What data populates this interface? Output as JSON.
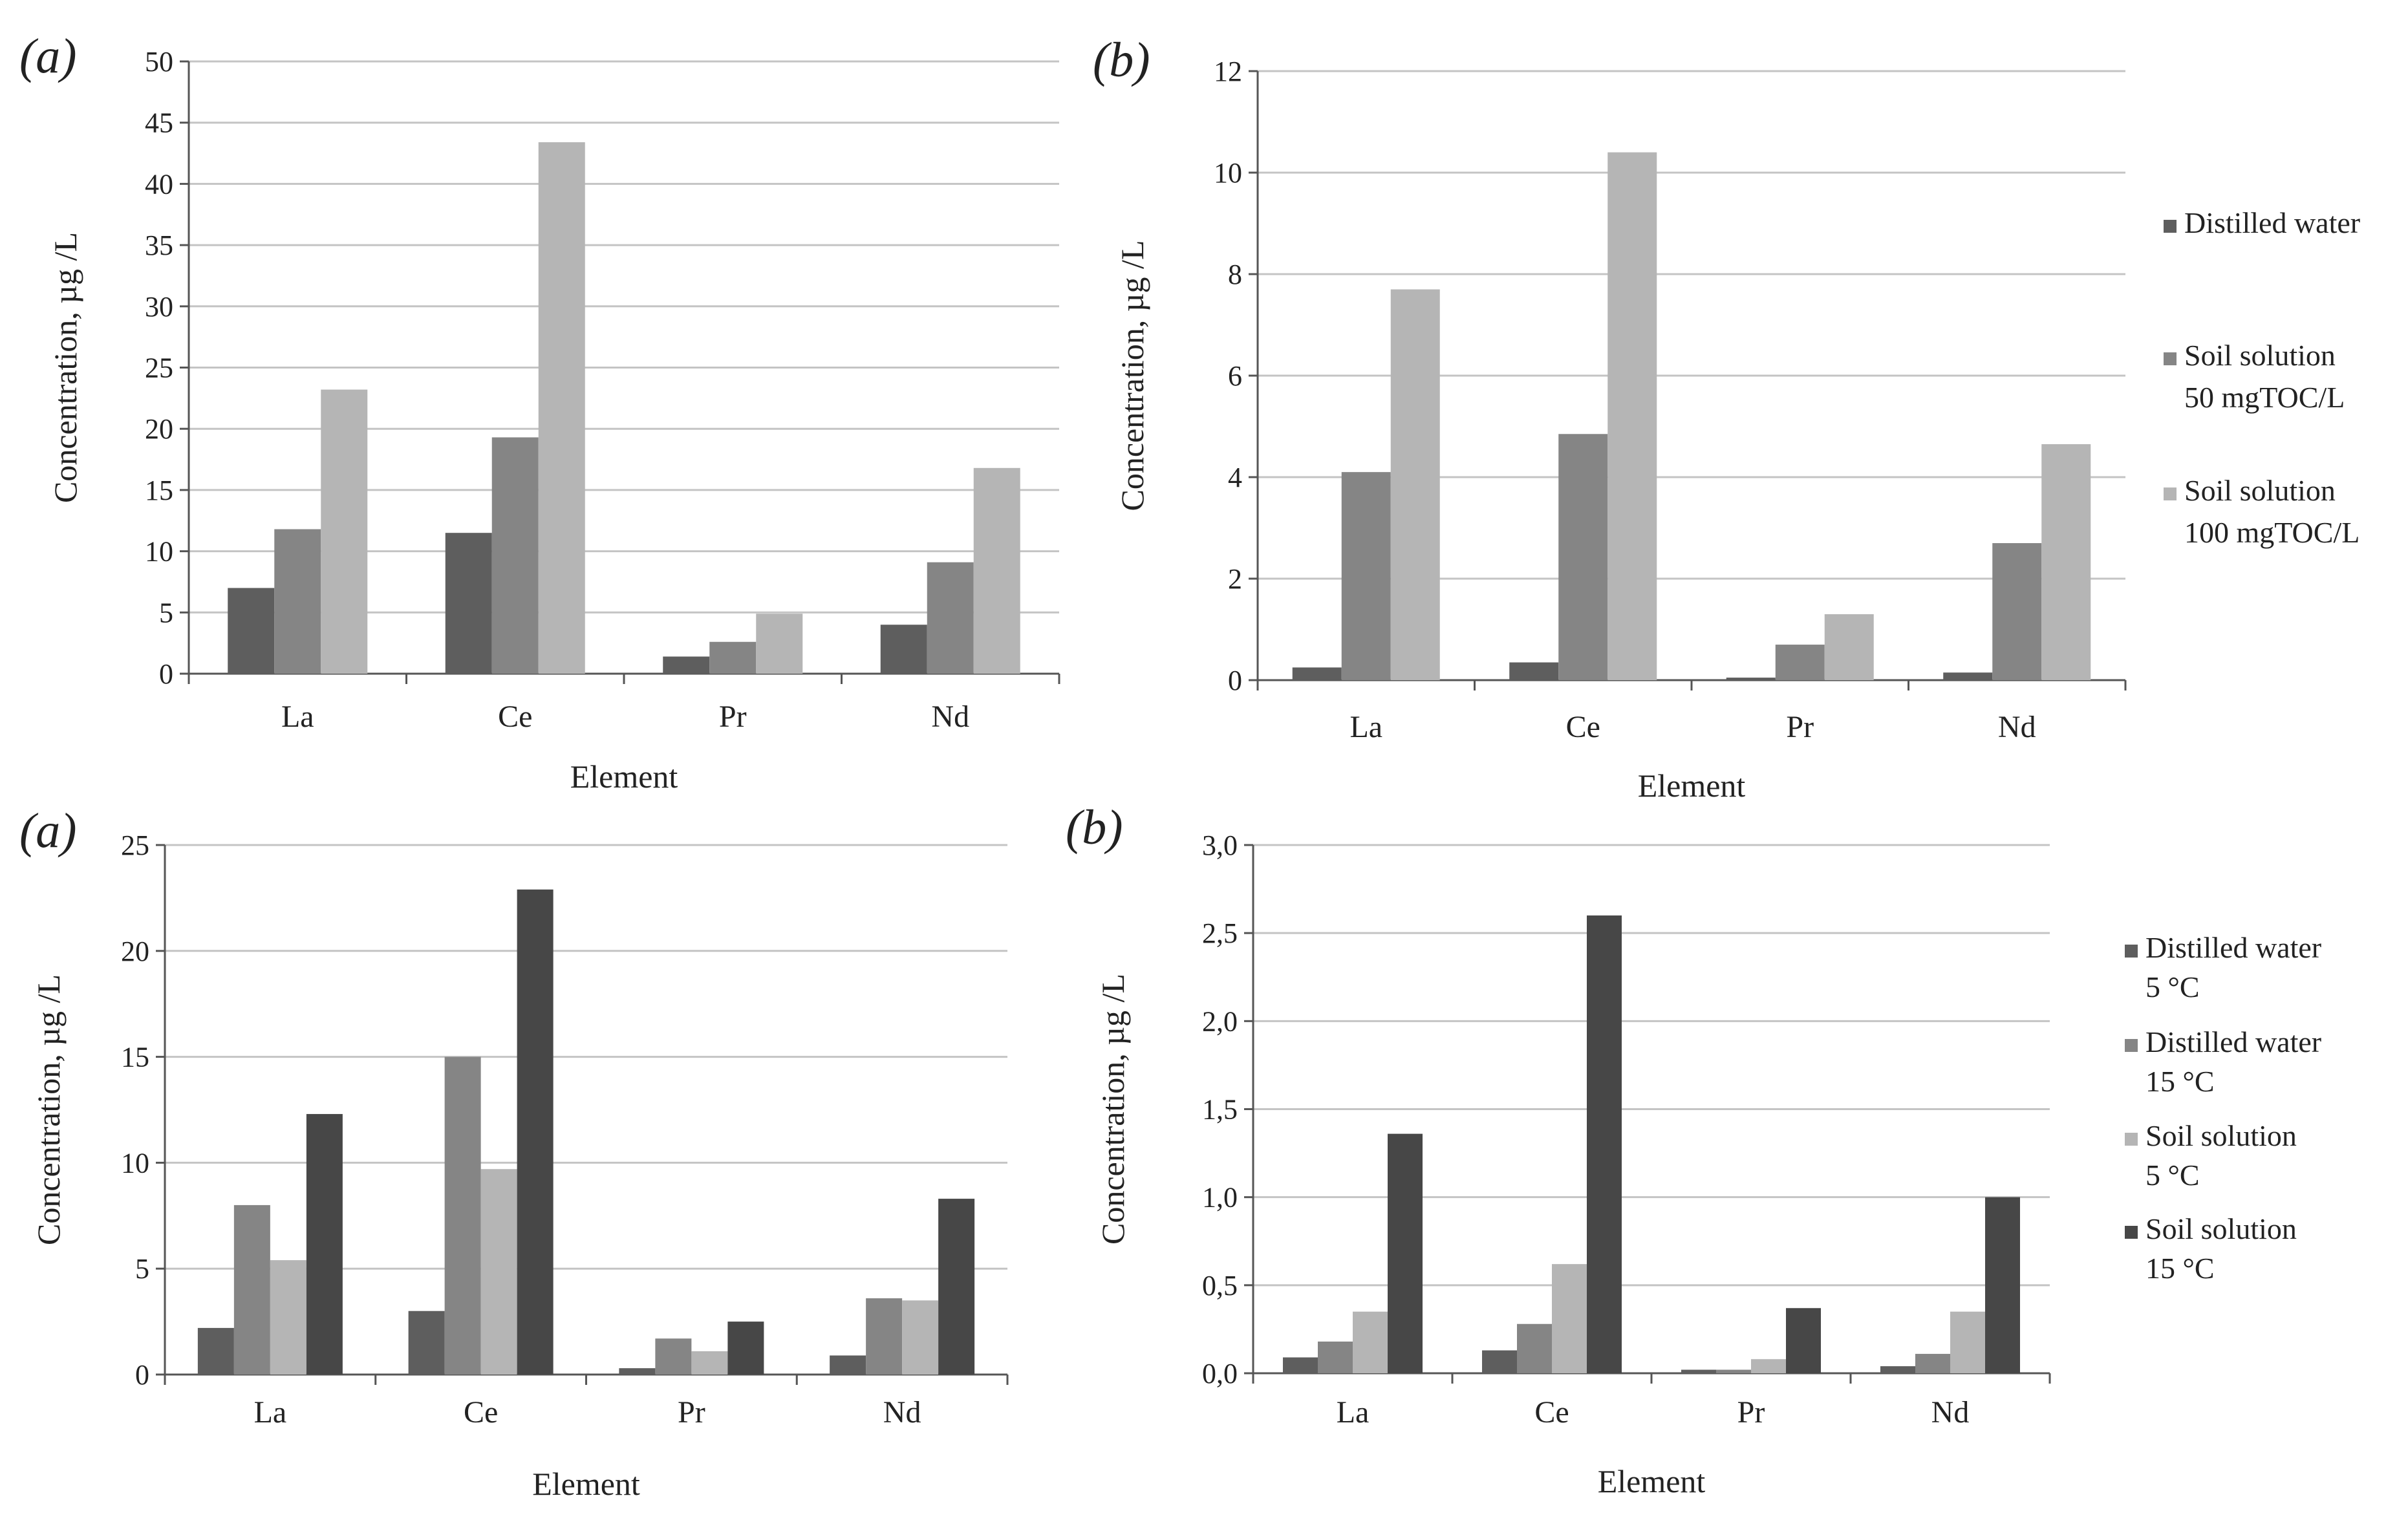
{
  "colors": {
    "dark": "#5e5e5e",
    "mid": "#858585",
    "light": "#b5b5b5",
    "darkest": "#474747",
    "grid": "#c4c4c4",
    "axis": "#555555"
  },
  "chart_data": [
    {
      "panel": "(a)",
      "type": "bar",
      "categories": [
        "La",
        "Ce",
        "Pr",
        "Nd"
      ],
      "xlabel": "Element",
      "ylabel": "Concentration, µg /L",
      "ylim": [
        0,
        50
      ],
      "yticks": [
        "0",
        "5",
        "10",
        "15",
        "20",
        "25",
        "30",
        "35",
        "40",
        "45",
        "50"
      ],
      "grid": true,
      "series": [
        {
          "name": "Distilled water",
          "color_key": "dark",
          "values": [
            7.0,
            11.5,
            1.4,
            4.0
          ]
        },
        {
          "name": "Soil solution 50 mgTOC/L",
          "color_key": "mid",
          "values": [
            11.8,
            19.3,
            2.6,
            9.1
          ]
        },
        {
          "name": "Soil solution 100 mgTOC/L",
          "color_key": "light",
          "values": [
            23.2,
            43.4,
            4.9,
            16.8
          ]
        }
      ]
    },
    {
      "panel": "(b)",
      "type": "bar",
      "categories": [
        "La",
        "Ce",
        "Pr",
        "Nd"
      ],
      "xlabel": "Element",
      "ylabel": "Concentration, µg /L",
      "ylim": [
        0,
        12
      ],
      "yticks": [
        "0",
        "2",
        "4",
        "6",
        "8",
        "10",
        "12"
      ],
      "grid": true,
      "legend_position": "right",
      "series": [
        {
          "name": "Distilled water",
          "legend_lines": [
            "Distilled water"
          ],
          "color_key": "dark",
          "values": [
            0.25,
            0.35,
            0.05,
            0.15
          ]
        },
        {
          "name": "Soil solution 50 mgTOC/L",
          "legend_lines": [
            "Soil solution",
            "50 mgTOC/L"
          ],
          "color_key": "mid",
          "values": [
            4.1,
            4.85,
            0.7,
            2.7
          ]
        },
        {
          "name": "Soil solution 100 mgTOC/L",
          "legend_lines": [
            "Soil solution",
            "100 mgTOC/L"
          ],
          "color_key": "light",
          "values": [
            7.7,
            10.4,
            1.3,
            4.65
          ]
        }
      ]
    },
    {
      "panel": "(a)",
      "type": "bar",
      "categories": [
        "La",
        "Ce",
        "Pr",
        "Nd"
      ],
      "xlabel": "Element",
      "ylabel": "Concentration, µg /L",
      "ylim": [
        0,
        25
      ],
      "yticks": [
        "0",
        "5",
        "10",
        "15",
        "20",
        "25"
      ],
      "grid": true,
      "series": [
        {
          "name": "Distilled water 5 °C",
          "color_key": "dark",
          "values": [
            2.2,
            3.0,
            0.3,
            0.9
          ]
        },
        {
          "name": "Distilled water 15 °C",
          "color_key": "mid",
          "values": [
            8.0,
            15.0,
            1.7,
            3.6
          ]
        },
        {
          "name": "Soil solution 5 °C",
          "color_key": "light",
          "values": [
            5.4,
            9.7,
            1.1,
            3.5
          ]
        },
        {
          "name": "Soil solution 15 °C",
          "color_key": "darkest",
          "values": [
            12.3,
            22.9,
            2.5,
            8.3
          ]
        }
      ]
    },
    {
      "panel": "(b)",
      "type": "bar",
      "categories": [
        "La",
        "Ce",
        "Pr",
        "Nd"
      ],
      "xlabel": "Element",
      "ylabel": "Concentration, µg /L",
      "ylim": [
        0,
        3.0
      ],
      "yticks": [
        "0,0",
        "0,5",
        "1,0",
        "1,5",
        "2,0",
        "2,5",
        "3,0"
      ],
      "grid": true,
      "legend_position": "right",
      "series": [
        {
          "name": "Distilled water 5 °C",
          "legend_lines": [
            "Distilled  water",
            "5 °C"
          ],
          "color_key": "dark",
          "values": [
            0.09,
            0.13,
            0.02,
            0.04
          ]
        },
        {
          "name": "Distilled water 15 °C",
          "legend_lines": [
            "Distilled  water",
            "15 °C"
          ],
          "color_key": "mid",
          "values": [
            0.18,
            0.28,
            0.02,
            0.11
          ]
        },
        {
          "name": "Soil solution 5 °C",
          "legend_lines": [
            "Soil  solution",
            "5 °C"
          ],
          "color_key": "light",
          "values": [
            0.35,
            0.62,
            0.08,
            0.35
          ]
        },
        {
          "name": "Soil solution 15 °C",
          "legend_lines": [
            "Soil  solution",
            "15 °C"
          ],
          "color_key": "darkest",
          "values": [
            1.36,
            2.6,
            0.37,
            1.0
          ]
        }
      ]
    }
  ]
}
